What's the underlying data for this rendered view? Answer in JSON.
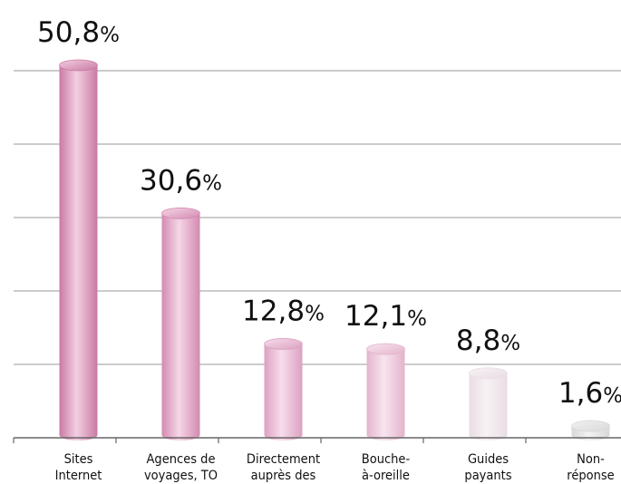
{
  "chart_data": {
    "type": "bar",
    "title": "",
    "xlabel": "",
    "ylabel": "",
    "ylim": [
      0,
      60
    ],
    "grid": true,
    "categories": [
      [
        "Sites",
        "Internet"
      ],
      [
        "Agences de",
        "voyages, TO"
      ],
      [
        "Directement",
        "auprès des"
      ],
      [
        "Bouche-",
        "à-oreille"
      ],
      [
        "Guides",
        "payants"
      ],
      [
        "Non-",
        "réponse"
      ]
    ],
    "values": [
      50.8,
      30.6,
      12.8,
      12.1,
      8.8,
      1.6
    ],
    "value_labels": [
      "50,8%",
      "30,6%",
      "12,8%",
      "12,1%",
      "8,8%",
      "1,6%"
    ],
    "colors": {
      "bar_dark": [
        "#c97aa3",
        "#d38ab1",
        "#dca1c1",
        "#e3b4cd",
        "#e9dde4",
        "#d8d8d8"
      ],
      "bar_light": [
        "#f3cfe2",
        "#f5d6e6",
        "#f7ddeb",
        "#f8e4ee",
        "#f7f2f4",
        "#f2f2f2"
      ],
      "grid": "#999999",
      "axis": "#666666",
      "text": "#111111"
    }
  }
}
